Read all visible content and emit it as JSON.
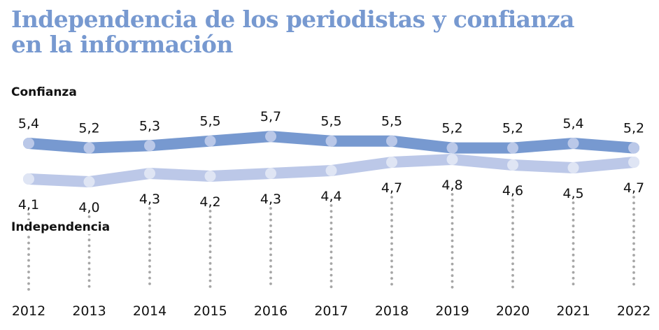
{
  "chart_data": {
    "type": "line",
    "title": "Independencia de los periodistas y confianza en la información",
    "title_line1": "Independencia de los periodistas y confianza",
    "title_line2": "en la información",
    "xlabel": "",
    "ylabel": "",
    "categories": [
      "2012",
      "2013",
      "2014",
      "2015",
      "2016",
      "2017",
      "2018",
      "2019",
      "2020",
      "2021",
      "2022"
    ],
    "series": [
      {
        "name": "Confianza",
        "color": "#7799d0",
        "marker_color": "#bac8e8",
        "values": [
          5.4,
          5.2,
          5.3,
          5.5,
          5.7,
          5.5,
          5.5,
          5.2,
          5.2,
          5.4,
          5.2
        ],
        "labels": [
          "5,4",
          "5,2",
          "5,3",
          "5,5",
          "5,7",
          "5,5",
          "5,5",
          "5,2",
          "5,2",
          "5,4",
          "5,2"
        ],
        "label_position": "above"
      },
      {
        "name": "Independencia",
        "color": "#bcc8e8",
        "marker_color": "#dfe5f4",
        "values": [
          4.1,
          4.0,
          4.3,
          4.2,
          4.3,
          4.4,
          4.7,
          4.8,
          4.6,
          4.5,
          4.7
        ],
        "labels": [
          "4,1",
          "4,0",
          "4,3",
          "4,2",
          "4,3",
          "4,4",
          "4,7",
          "4,8",
          "4,6",
          "4,5",
          "4,7"
        ],
        "label_position": "below"
      }
    ],
    "grid": false,
    "legend": "inline-left",
    "guide_line_color": "#a6a6a6"
  }
}
